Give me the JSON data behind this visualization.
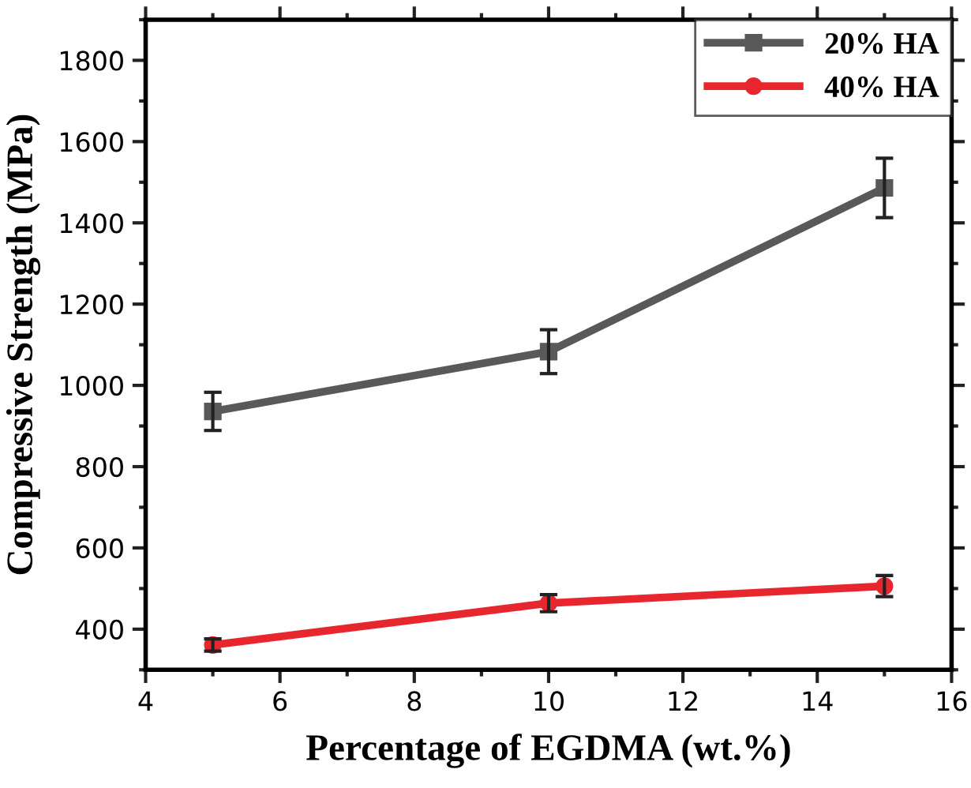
{
  "chart_data": {
    "type": "line",
    "xlabel": "Percentage of EGDMA (wt.%)",
    "ylabel": "Compressive Strength (MPa)",
    "x": [
      5,
      10,
      15
    ],
    "series": [
      {
        "name": "20% HA",
        "color": "#595959",
        "marker": "square",
        "values": [
          936,
          1083,
          1486
        ],
        "errors": [
          47,
          54,
          73
        ]
      },
      {
        "name": "40% HA",
        "color": "#e8262e",
        "marker": "circle",
        "values": [
          361,
          464,
          506
        ],
        "errors": [
          15,
          21,
          26
        ]
      }
    ],
    "xlim": [
      4,
      16
    ],
    "xticks": [
      4,
      6,
      8,
      10,
      12,
      14,
      16
    ],
    "ylim": [
      300,
      1900
    ],
    "yticks": [
      400,
      600,
      800,
      1000,
      1200,
      1400,
      1600,
      1800
    ],
    "grid": false,
    "legend": "top right",
    "line_style": "solid"
  }
}
